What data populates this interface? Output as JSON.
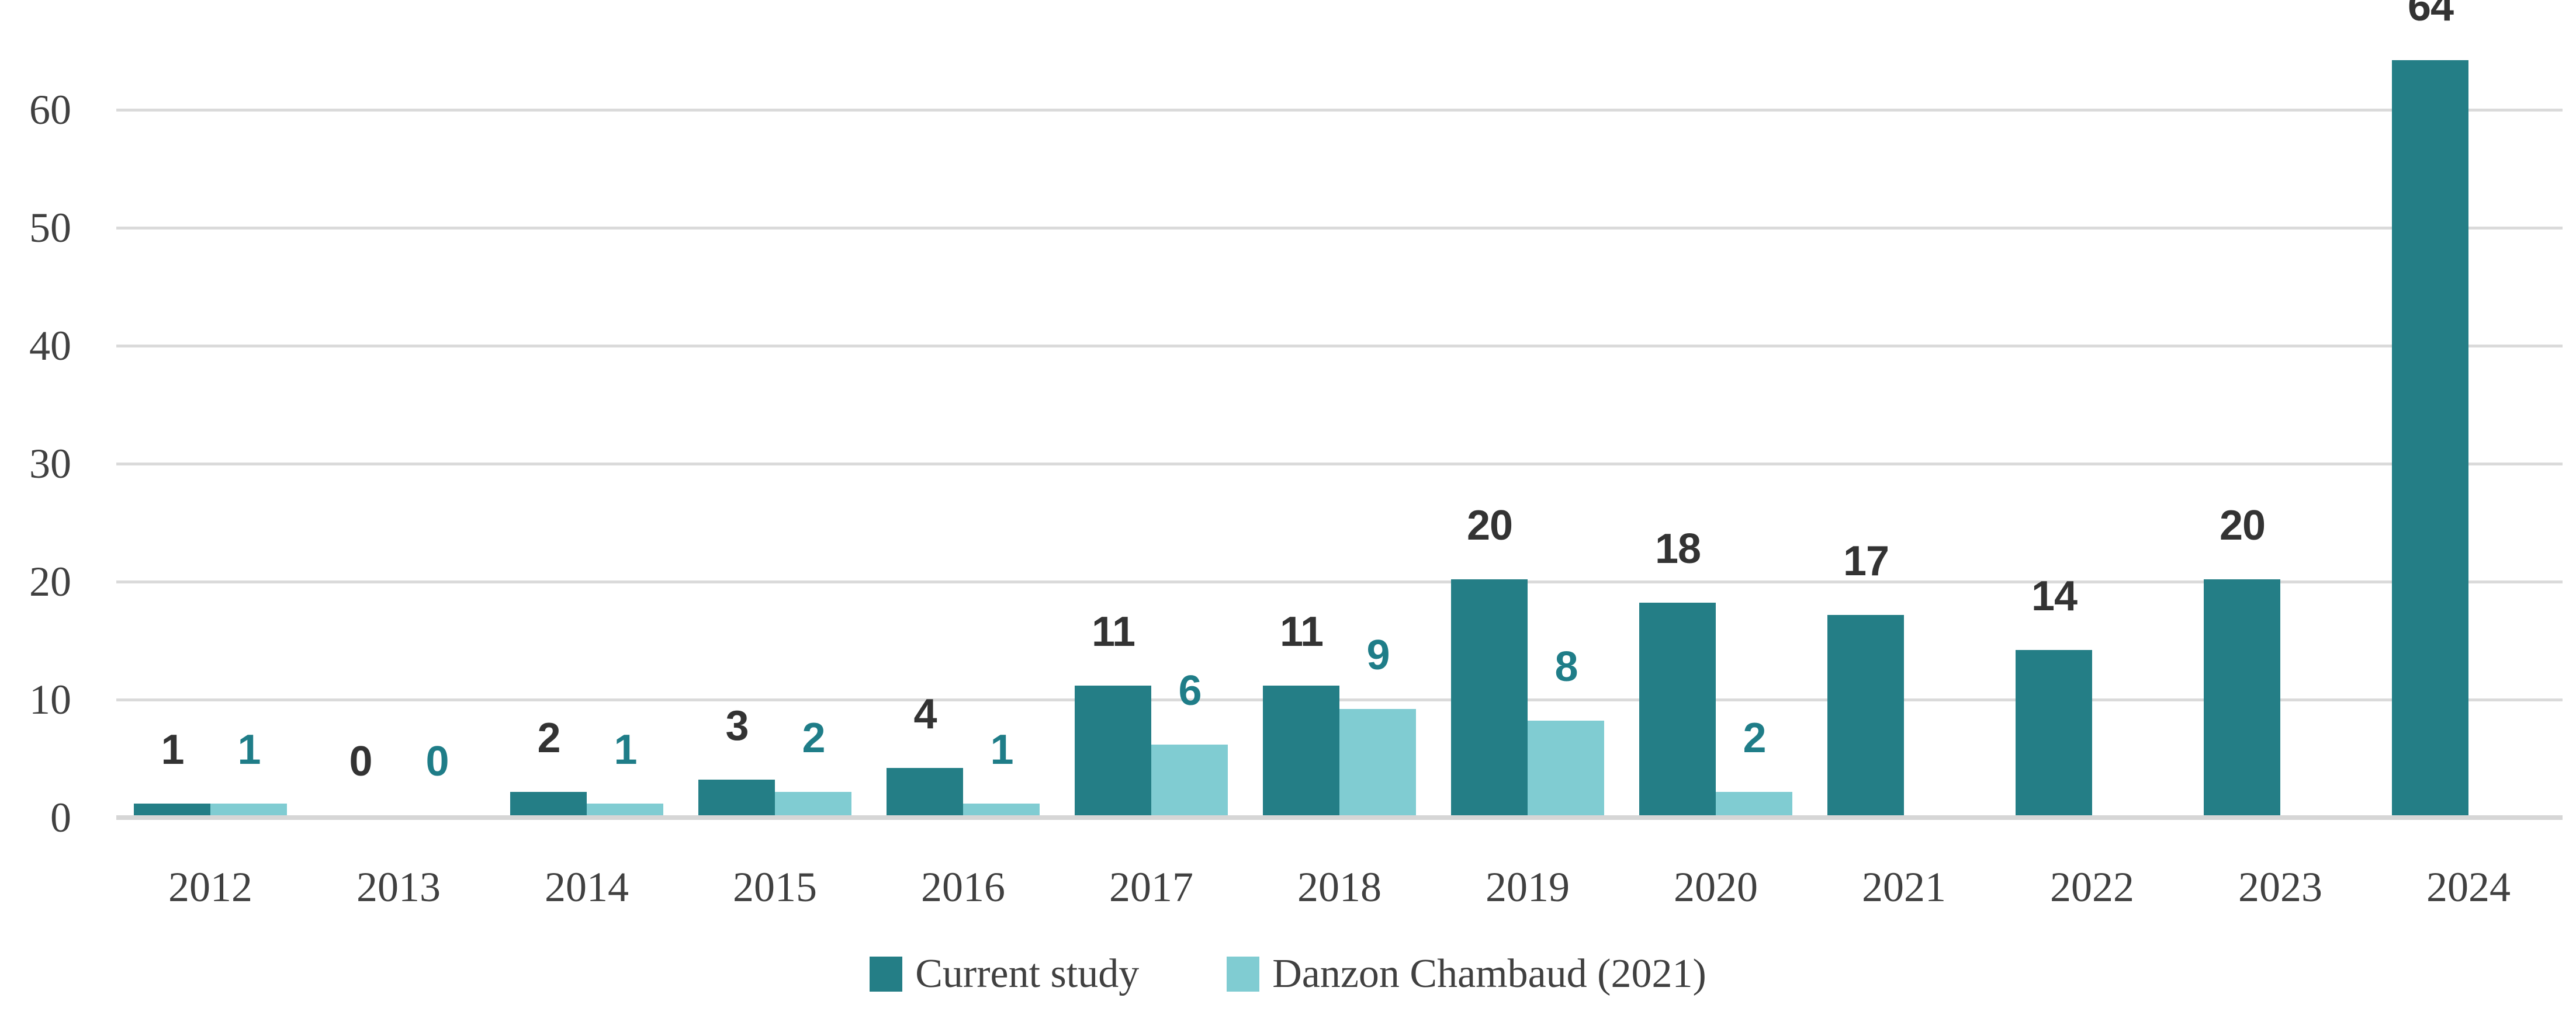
{
  "chart_data": {
    "type": "bar",
    "title": "",
    "xlabel": "",
    "ylabel": "",
    "categories": [
      "2012",
      "2013",
      "2014",
      "2015",
      "2016",
      "2017",
      "2018",
      "2019",
      "2020",
      "2021",
      "2022",
      "2023",
      "2024"
    ],
    "series": [
      {
        "name": "Current study",
        "color": "#247e86",
        "label_color": "#333333",
        "values": [
          1,
          0,
          2,
          3,
          4,
          11,
          11,
          20,
          18,
          17,
          14,
          20,
          64
        ]
      },
      {
        "name": "Danzon Chambaud (2021)",
        "color": "#80ccd2",
        "label_color": "#1f7d88",
        "values": [
          1,
          0,
          1,
          2,
          1,
          6,
          9,
          8,
          2,
          null,
          null,
          null,
          null
        ]
      }
    ],
    "y_axis": {
      "ticks": [
        0,
        10,
        20,
        30,
        40,
        50,
        60
      ],
      "min": 0,
      "max": 65
    },
    "grid": true,
    "legend_position": "bottom",
    "colors": {
      "gridline": "#dadada",
      "axis_line": "#d6d6d6",
      "axis_text": "#404040",
      "background": "#ffffff"
    },
    "data_labels_shown": true
  }
}
